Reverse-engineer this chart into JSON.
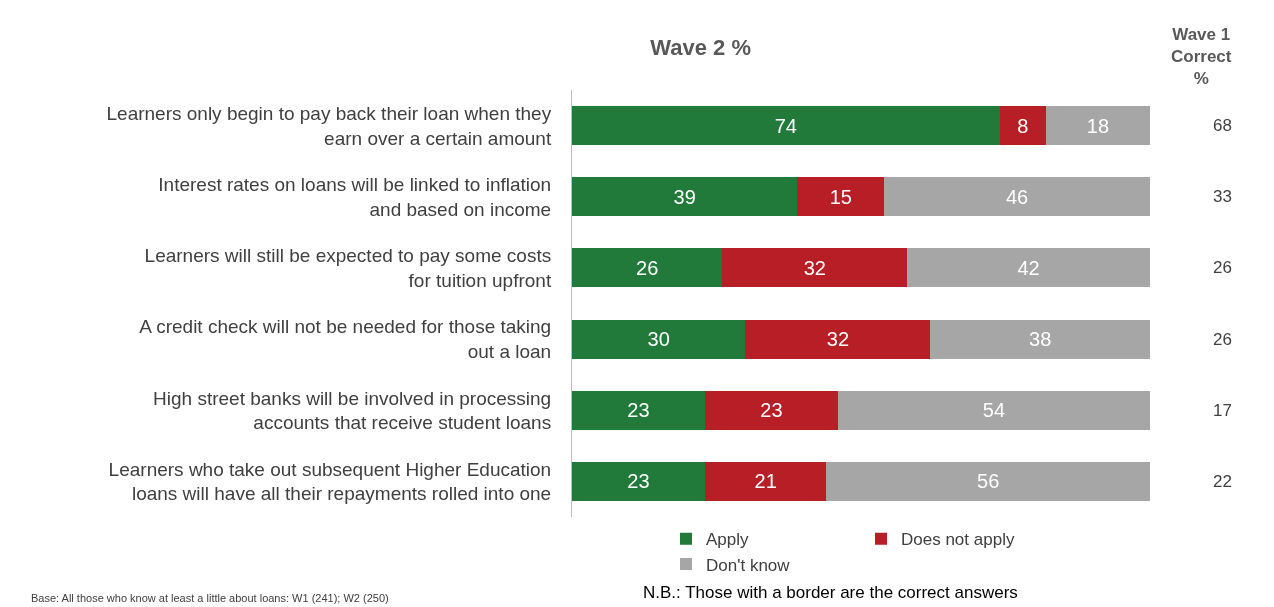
{
  "chart_data": {
    "type": "bar",
    "orientation": "horizontal",
    "stacked": true,
    "data_labels": true,
    "legend": "bottom",
    "title": "Wave 2 %",
    "categories": [
      "Learners only begin to pay back their loan when they earn over a certain amount",
      "Interest rates on loans will be linked to inflation and based on income",
      "Learners will still be expected to pay some costs for tuition upfront",
      "A credit check will not be needed for those taking out a loan",
      "High street banks will be involved in processing accounts that receive student loans",
      "Learners who take out subsequent Higher Education loans will have all their repayments rolled into one"
    ],
    "series": [
      {
        "name": "Apply",
        "color": "#217a3a",
        "values": [
          74,
          39,
          26,
          30,
          23,
          23
        ]
      },
      {
        "name": "Does not apply",
        "color": "#b81e25",
        "values": [
          8,
          15,
          32,
          32,
          23,
          21
        ]
      },
      {
        "name": "Don't know",
        "color": "#a6a6a6",
        "values": [
          18,
          46,
          42,
          38,
          54,
          56
        ]
      }
    ],
    "annotations": [
      "Wave 1 Correct %",
      "68",
      "33",
      "26",
      "26",
      "17",
      "22",
      "Base: All those who know at least a little about loans: W1 (241); W2 (250)",
      "N.B.: Those with a border are the correct answers"
    ]
  }
}
